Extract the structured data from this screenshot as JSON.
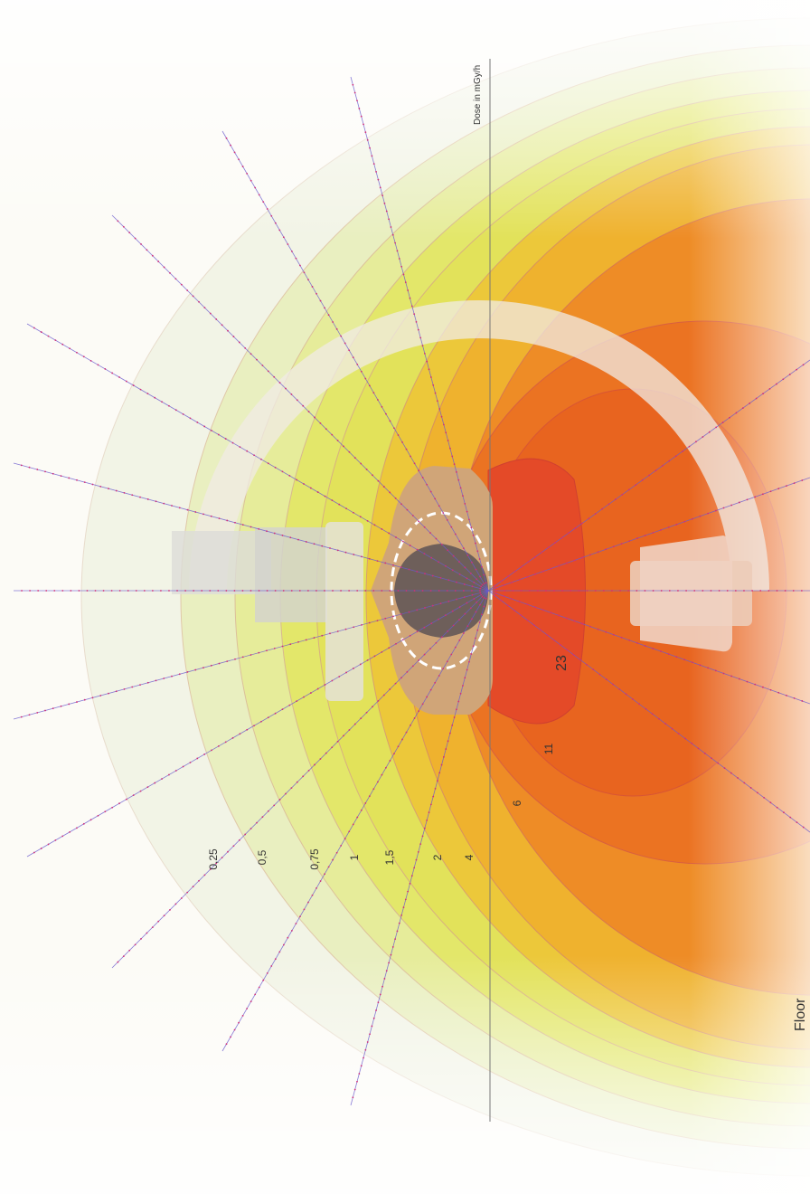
{
  "title": "Dose in mGy/h",
  "contours": [
    {
      "label": "0,25"
    },
    {
      "label": "0,5"
    },
    {
      "label": "0,75"
    },
    {
      "label": "1"
    },
    {
      "label": "1,5"
    },
    {
      "label": "2"
    },
    {
      "label": "4"
    },
    {
      "label": "6"
    },
    {
      "label": "11"
    },
    {
      "label": "23"
    }
  ],
  "floor_label": "Floor"
}
